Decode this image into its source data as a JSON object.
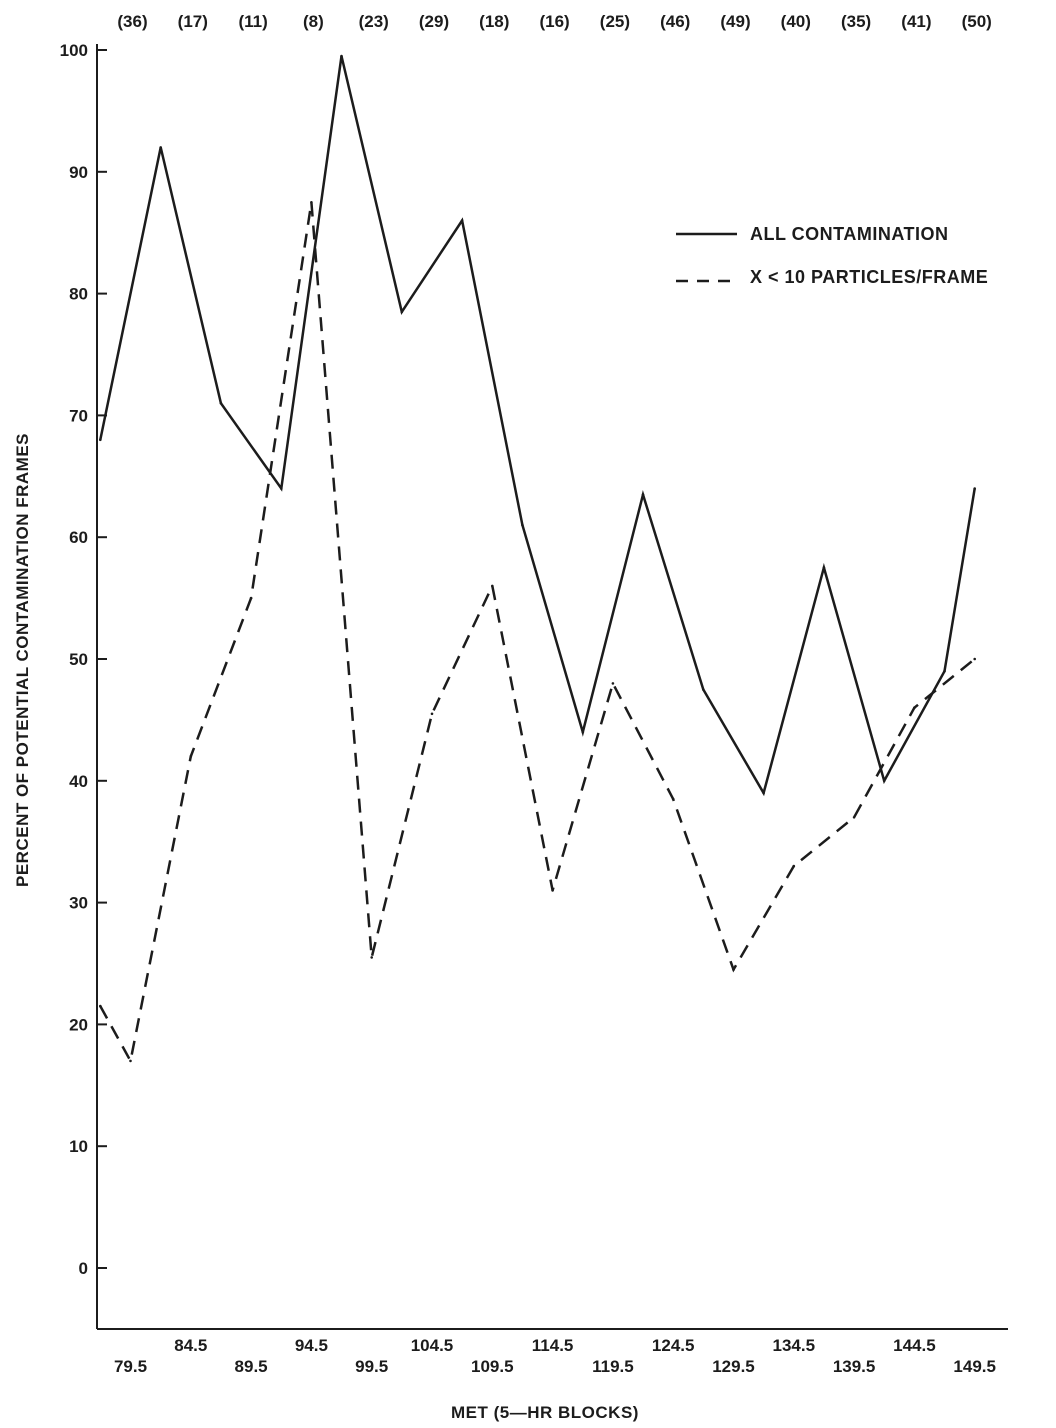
{
  "chart_data": {
    "type": "line",
    "title": "",
    "xlabel": "MET (5—HR BLOCKS)",
    "ylabel": "PERCENT OF POTENTIAL CONTAMINATION FRAMES",
    "ylim": [
      -5,
      100
    ],
    "y_ticks": [
      0,
      10,
      20,
      30,
      40,
      50,
      60,
      70,
      80,
      90,
      100
    ],
    "grid": false,
    "legend_position": "top-right",
    "x_tick_labels": [
      "79.5",
      "84.5",
      "89.5",
      "94.5",
      "99.5",
      "104.5",
      "109.5",
      "114.5",
      "119.5",
      "124.5",
      "129.5",
      "134.5",
      "139.5",
      "144.5",
      "149.5"
    ],
    "x_tick_values": [
      79.5,
      84.5,
      89.5,
      94.5,
      99.5,
      104.5,
      109.5,
      114.5,
      119.5,
      124.5,
      129.5,
      134.5,
      139.5,
      144.5,
      149.5
    ],
    "top_counts": [
      "(36)",
      "(17)",
      "(11)",
      "(8)",
      "(23)",
      "(29)",
      "(18)",
      "(16)",
      "(25)",
      "(46)",
      "(49)",
      "(40)",
      "(35)",
      "(41)",
      "(50)"
    ],
    "series": [
      {
        "name": "ALL CONTAMINATION",
        "style": "solid",
        "x": [
          77,
          82,
          87,
          92,
          97,
          102,
          107,
          112,
          117,
          122,
          127,
          132,
          137,
          142,
          147,
          149.5
        ],
        "y": [
          68,
          92,
          71,
          64,
          99.5,
          78.5,
          86,
          61,
          44,
          63.5,
          47.5,
          39,
          57.5,
          40,
          49,
          64
        ]
      },
      {
        "name": "X < 10 PARTICLES/FRAME",
        "style": "dashed",
        "x": [
          77,
          79.5,
          84.5,
          89.5,
          94.5,
          99.5,
          104.5,
          109.5,
          114.5,
          119.5,
          124.5,
          129.5,
          134.5,
          139.5,
          144.5,
          149.5
        ],
        "y": [
          21.5,
          17,
          42,
          55,
          87.5,
          25.5,
          45.5,
          56,
          31,
          48,
          38.5,
          24.5,
          33,
          37,
          46,
          50
        ]
      }
    ]
  },
  "colors": {
    "ink": "#1c1c1c",
    "background": "#ffffff"
  }
}
